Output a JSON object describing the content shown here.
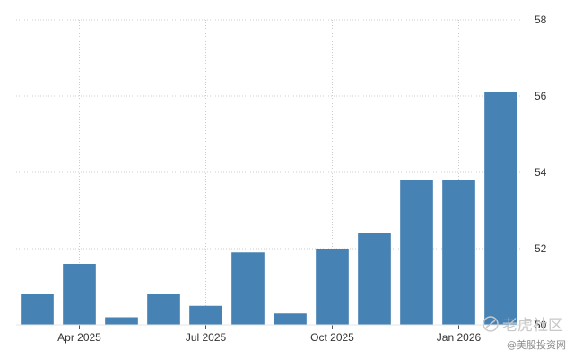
{
  "chart_data": {
    "type": "bar",
    "categories": [
      "Mar 2025",
      "Apr 2025",
      "May 2025",
      "Jun 2025",
      "Jul 2025",
      "Aug 2025",
      "Sep 2025",
      "Oct 2025",
      "Nov 2025",
      "Dec 2025",
      "Jan 2026",
      "Feb 2026"
    ],
    "values": [
      50.8,
      51.6,
      50.2,
      50.8,
      50.5,
      51.9,
      50.3,
      52.0,
      52.4,
      53.8,
      53.8,
      56.1
    ],
    "x_tick_labels": [
      "Apr 2025",
      "Jul 2025",
      "Oct 2025",
      "Jan 2026"
    ],
    "x_tick_categories": [
      "Apr 2025",
      "Jul 2025",
      "Oct 2025",
      "Jan 2026"
    ],
    "y_ticks": [
      50,
      52,
      54,
      56,
      58
    ],
    "y_tick_labels": [
      "50",
      "52",
      "54",
      "56",
      "58"
    ],
    "ylim": [
      50,
      58
    ],
    "title": "",
    "xlabel": "",
    "ylabel": "",
    "grid": true,
    "y_axis_side": "right",
    "bar_color": "#4682b4",
    "grid_color": "#cccccc"
  },
  "watermark": {
    "main": "老虎社区",
    "sub": "@美股投资网"
  }
}
